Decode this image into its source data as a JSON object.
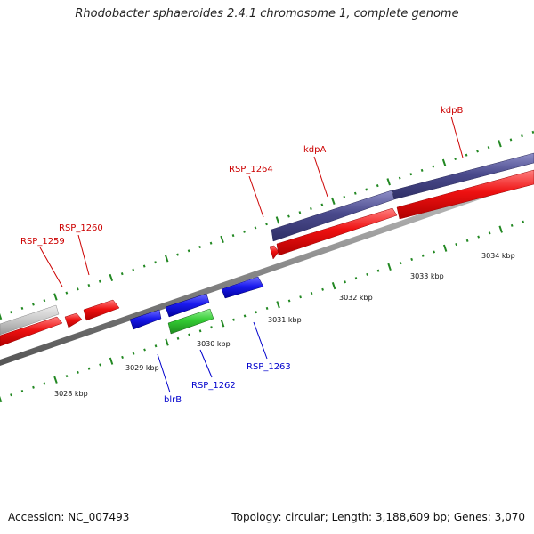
{
  "title": "Rhodobacter sphaeroides 2.4.1 chromosome 1, complete genome",
  "footer": {
    "accession": "Accession: NC_007493",
    "summary": "Topology: circular; Length: 3,188,609 bp; Genes: 3,070"
  },
  "colors": {
    "forward_gene": "#ee1111",
    "reverse_gene": "#1a1aee",
    "rna_gene": "#33cc33",
    "operon_band": "#4a4a8c",
    "grey_feature": "#c8c8c8",
    "backbone": "#888888",
    "tick": "#228822"
  },
  "scale_labels": [
    "3028 kbp",
    "3029 kbp",
    "3030 kbp",
    "3031 kbp",
    "3032 kbp",
    "3033 kbp",
    "3034 kbp"
  ],
  "gene_labels": {
    "RSP_1259": "RSP_1259",
    "RSP_1260": "RSP_1260",
    "RSP_1264": "RSP_1264",
    "kdpA": "kdpA",
    "kdpB": "kdpB",
    "blrB": "blrB",
    "RSP_1262": "RSP_1262",
    "RSP_1263": "RSP_1263"
  }
}
